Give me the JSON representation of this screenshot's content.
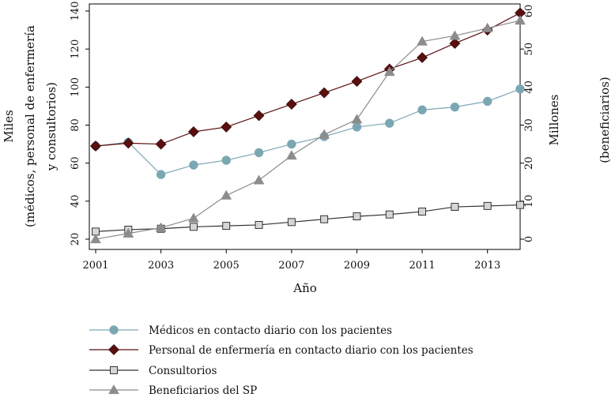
{
  "chart_data": {
    "type": "line",
    "xlabel": "Año",
    "ylabel_left": [
      "Miles",
      "(médicos, personal de enfermería",
      "y consultorios)"
    ],
    "ylabel_right": [
      "Millones",
      "(beneficiarios)"
    ],
    "x": [
      2001,
      2002,
      2003,
      2004,
      2005,
      2006,
      2007,
      2008,
      2009,
      2010,
      2011,
      2012,
      2013,
      2014
    ],
    "xticks": [
      "2001",
      "2003",
      "2005",
      "2007",
      "2009",
      "2011",
      "2013"
    ],
    "xlim": [
      2001,
      2014
    ],
    "ylim_left": [
      20,
      140
    ],
    "yticks_left": [
      "20",
      "40",
      "60",
      "80",
      "100",
      "120",
      "140"
    ],
    "ylim_right": [
      0,
      60
    ],
    "yticks_right": [
      "0",
      "10",
      "20",
      "30",
      "40",
      "50",
      "60"
    ],
    "series": [
      {
        "name": "Médicos en contacto diario con los pacientes",
        "axis": "left",
        "marker": "circle",
        "color": "#7ba7b3",
        "values": [
          69,
          71,
          54,
          59,
          61.5,
          65.5,
          70,
          74,
          79,
          81,
          88,
          89.5,
          92.5,
          99
        ]
      },
      {
        "name": "Personal de enfermería en contacto diario con los pacientes",
        "axis": "left",
        "marker": "diamond",
        "color": "#5a0f0f",
        "values": [
          69,
          70.5,
          70,
          76.5,
          79,
          85,
          91,
          97,
          103,
          109.5,
          115.5,
          123,
          130,
          139
        ]
      },
      {
        "name": "Consultorios",
        "axis": "left",
        "marker": "square",
        "color": "#333333",
        "values": [
          24,
          25,
          25.5,
          26.5,
          27,
          27.5,
          29,
          30.5,
          32,
          33,
          34.5,
          37,
          37.5,
          38
        ]
      },
      {
        "name": "Beneficiarios del SP",
        "axis": "right",
        "marker": "triangle",
        "color": "#8c8c8c",
        "values": [
          0,
          1.5,
          3,
          5.5,
          11.5,
          15.5,
          22,
          27.5,
          31.5,
          44,
          52,
          53.5,
          55.5,
          57.5
        ]
      }
    ]
  }
}
